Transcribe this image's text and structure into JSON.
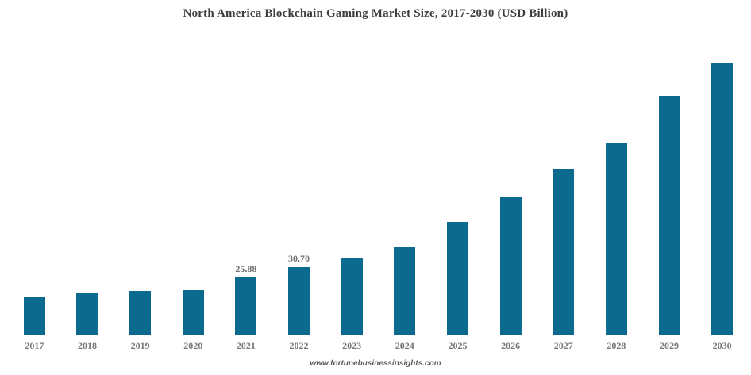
{
  "chart_data": {
    "type": "bar",
    "title": "North America Blockchain Gaming Market Size, 2017-2030 (USD Billion)",
    "categories": [
      "2017",
      "2018",
      "2019",
      "2020",
      "2021",
      "2022",
      "2023",
      "2024",
      "2025",
      "2026",
      "2027",
      "2028",
      "2029",
      "2030"
    ],
    "values": [
      17.2,
      19.0,
      19.9,
      20.2,
      25.88,
      30.7,
      34.9,
      39.5,
      51.1,
      62.1,
      75.1,
      86.7,
      108.2,
      123.0
    ],
    "data_labels": {
      "2021": "25.88",
      "2022": "30.70"
    },
    "xlabel": "",
    "ylabel": "",
    "ylim": [
      0,
      126.6
    ],
    "grid": false,
    "legend": false,
    "axis_lines": false,
    "bar_color": "#0b6a8e",
    "title_color": "#3d3d3d",
    "tick_label_color": "#767676",
    "data_label_color": "#6e6e6e"
  },
  "watermark": {
    "text": "www.fortunebusinessinsights.com",
    "color": "#595959"
  }
}
